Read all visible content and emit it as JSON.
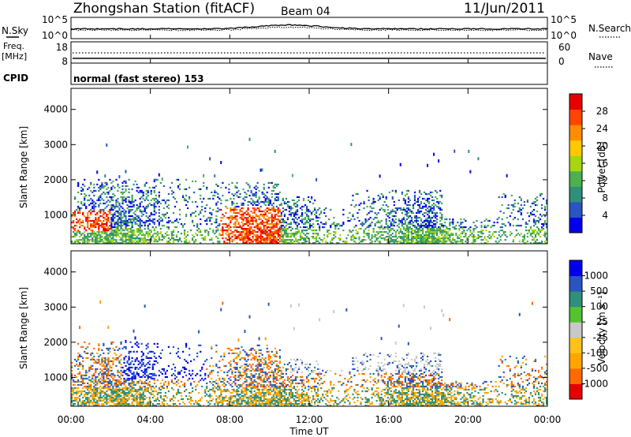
{
  "header": {
    "station": "Zhongshan Station (fitACF)",
    "beam": "Beam 04",
    "date": "11/Jun/2011"
  },
  "colors": {
    "power": [
      "#0000ee",
      "#2a55c0",
      "#2f8f7a",
      "#4caf50",
      "#a6d610",
      "#ffc800",
      "#ff8c00",
      "#ff4500",
      "#e60000"
    ],
    "velocity": [
      "#e60000",
      "#ff6a00",
      "#ffa500",
      "#ffc21a",
      "#c8c8c8",
      "#55c230",
      "#2f8f7a",
      "#2a55c0",
      "#0000ee"
    ]
  },
  "panels": {
    "nsky": {
      "left_label": "N.Sky",
      "right_label": "N.Search",
      "left_ticks": [
        "10^5",
        "10^0"
      ],
      "right_ticks": [
        "10^5",
        "10^0"
      ]
    },
    "freq": {
      "left_label_1": "Freq.",
      "left_label_2": "[MHz]",
      "left_ticks": [
        "18",
        "8"
      ],
      "right_label": "Nave",
      "right_ticks": [
        "60",
        "0"
      ],
      "cpid_label": "CPID",
      "cpid_text": "normal (fast stereo) 153"
    }
  },
  "chart_data": [
    {
      "type": "heatmap",
      "name": "power",
      "ylabel": "Slant Range [km]",
      "ylim": [
        180,
        4600
      ],
      "y_ticks": [
        "1000",
        "2000",
        "3000",
        "4000"
      ],
      "x_ticks": [
        "00:00",
        "04:00",
        "08:00",
        "12:00",
        "16:00",
        "20:00",
        "00:00"
      ],
      "colorbar": {
        "label": "Power [dB]",
        "ticks": [
          "4",
          "8",
          "12",
          "16",
          "20",
          "24",
          "28"
        ],
        "range": [
          0,
          32
        ]
      }
    },
    {
      "type": "heatmap",
      "name": "velocity",
      "ylabel": "Slant Range [km]",
      "ylim": [
        180,
        4600
      ],
      "y_ticks": [
        "1000",
        "2000",
        "3000",
        "4000"
      ],
      "x_ticks": [
        "00:00",
        "04:00",
        "08:00",
        "12:00",
        "16:00",
        "20:00",
        "00:00"
      ],
      "xlabel": "Time UT",
      "colorbar": {
        "label": "Velocity [m s⁻¹]",
        "ticks": [
          "-1000",
          "-500",
          "-100",
          "-25",
          "25",
          "100",
          "500",
          "1000"
        ]
      }
    }
  ]
}
